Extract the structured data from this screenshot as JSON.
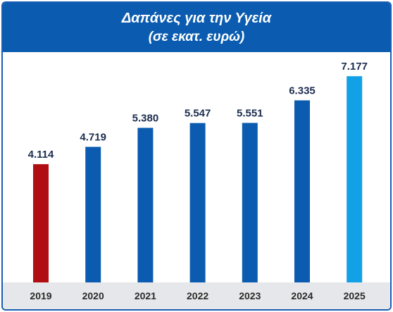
{
  "header": {
    "title": "Δαπάνες για την Υγεία",
    "subtitle": "(σε εκατ. ευρώ)"
  },
  "colors": {
    "header_bg": "#0b5cb0",
    "border": "#1a5fb4",
    "axis_band": "#e6e7ea",
    "default_bar": "#0b5cb0"
  },
  "chart_data": {
    "type": "bar",
    "title": "Δαπάνες για την Υγεία",
    "subtitle": "(σε εκατ. ευρώ)",
    "categories": [
      "2019",
      "2020",
      "2021",
      "2022",
      "2023",
      "2024",
      "2025"
    ],
    "values": [
      4114,
      4719,
      5380,
      5547,
      5551,
      6335,
      7177
    ],
    "value_labels": [
      "4.114",
      "4.719",
      "5.380",
      "5.547",
      "5.551",
      "6.335",
      "7.177"
    ],
    "bar_colors": [
      "#b00e12",
      "#0b5cb0",
      "#0b5cb0",
      "#0b5cb0",
      "#0b5cb0",
      "#0b5cb0",
      "#12a1e6"
    ],
    "xlabel": "",
    "ylabel": "",
    "ylim": [
      0,
      7500
    ],
    "grid": false,
    "legend": "none"
  }
}
